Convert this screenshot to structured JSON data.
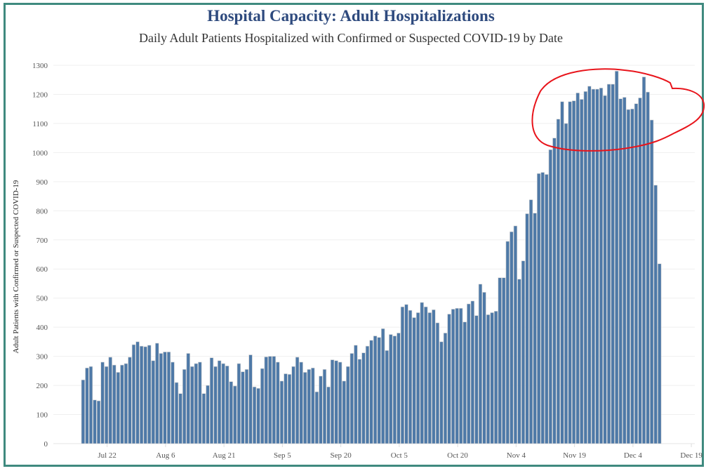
{
  "chart_data": {
    "type": "bar",
    "title": "Hospital Capacity: Adult Hospitalizations",
    "subtitle": "Daily Adult Patients Hospitalized with Confirmed or Suspected COVID-19 by Date",
    "xlabel": "",
    "ylabel": "Adult Patients with Confirmed or Suspected COVID-19",
    "ylim": [
      0,
      1300
    ],
    "yticks": [
      0,
      100,
      200,
      300,
      400,
      500,
      600,
      700,
      800,
      900,
      1000,
      1100,
      1200,
      1300
    ],
    "start_date": "Jul 15",
    "xticks": [
      {
        "label": "Jul 22",
        "day": 7
      },
      {
        "label": "Aug 6",
        "day": 22
      },
      {
        "label": "Aug 21",
        "day": 37
      },
      {
        "label": "Sep 5",
        "day": 52
      },
      {
        "label": "Sep 20",
        "day": 67
      },
      {
        "label": "Oct 5",
        "day": 82
      },
      {
        "label": "Oct 20",
        "day": 97
      },
      {
        "label": "Nov 4",
        "day": 112
      },
      {
        "label": "Nov 19",
        "day": 127
      },
      {
        "label": "Dec 4",
        "day": 142
      },
      {
        "label": "Dec 19",
        "day": 157
      }
    ],
    "grid": true,
    "values": [
      219,
      260,
      265,
      150,
      147,
      280,
      265,
      297,
      270,
      245,
      270,
      275,
      297,
      340,
      350,
      335,
      333,
      338,
      285,
      345,
      310,
      315,
      315,
      280,
      210,
      172,
      255,
      310,
      265,
      275,
      280,
      172,
      200,
      295,
      265,
      285,
      275,
      267,
      213,
      198,
      275,
      247,
      255,
      305,
      195,
      190,
      258,
      298,
      300,
      300,
      280,
      215,
      240,
      238,
      265,
      297,
      280,
      245,
      255,
      260,
      178,
      232,
      255,
      195,
      288,
      285,
      280,
      215,
      265,
      310,
      338,
      290,
      312,
      335,
      355,
      370,
      365,
      395,
      320,
      375,
      370,
      380,
      470,
      478,
      458,
      433,
      450,
      485,
      470,
      450,
      460,
      415,
      350,
      380,
      445,
      462,
      465,
      465,
      418,
      480,
      490,
      440,
      548,
      520,
      443,
      450,
      455,
      570,
      570,
      695,
      728,
      748,
      565,
      628,
      790,
      838,
      792,
      928,
      932,
      925,
      1010,
      1050,
      1115,
      1175,
      1100,
      1175,
      1178,
      1205,
      1183,
      1210,
      1228,
      1218,
      1218,
      1222,
      1196,
      1235,
      1235,
      1280,
      1185,
      1190,
      1148,
      1150,
      1168,
      1188,
      1260,
      1208,
      1112,
      888,
      618
    ],
    "bar_color": "#4e79a7",
    "annotation": {
      "type": "freehand-circle",
      "color": "#e8141b",
      "around": "peak Nov 19 - Dec 10"
    }
  }
}
